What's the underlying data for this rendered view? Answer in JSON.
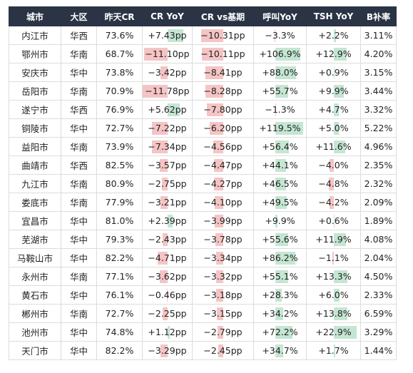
{
  "columns": [
    "城市",
    "大区",
    "昨天CR",
    "CR YoY",
    "CR vs基期",
    "呼叫YoY",
    "TSH YoY",
    "B补率"
  ],
  "colors": {
    "header_bg": "#2b3445",
    "neg_bar": "#f5c4c4",
    "pos_bar": "#c4e6d3"
  },
  "rows": [
    {
      "city": "内江市",
      "region": "华西",
      "cr": "73.6%",
      "cr_yoy": "+7.43pp",
      "cr_base": "−10.31pp",
      "call_yoy": "−3.3%",
      "tsh_yoy": "+2.2%",
      "b_rate": "3.11%",
      "v": [
        7.43,
        -10.31,
        -3.3,
        2.2
      ]
    },
    {
      "city": "鄂州市",
      "region": "华南",
      "cr": "68.7%",
      "cr_yoy": "−11.10pp",
      "cr_base": "−10.11pp",
      "call_yoy": "+106.9%",
      "tsh_yoy": "+12.9%",
      "b_rate": "4.20%",
      "v": [
        -11.1,
        -10.11,
        106.9,
        12.9
      ]
    },
    {
      "city": "安庆市",
      "region": "华中",
      "cr": "73.8%",
      "cr_yoy": "−3.42pp",
      "cr_base": "−8.41pp",
      "call_yoy": "+88.0%",
      "tsh_yoy": "+0.9%",
      "b_rate": "3.15%",
      "v": [
        -3.42,
        -8.41,
        88.0,
        0.9
      ]
    },
    {
      "city": "岳阳市",
      "region": "华南",
      "cr": "70.9%",
      "cr_yoy": "−11.78pp",
      "cr_base": "−8.28pp",
      "call_yoy": "+55.7%",
      "tsh_yoy": "+9.9%",
      "b_rate": "3.44%",
      "v": [
        -11.78,
        -8.28,
        55.7,
        9.9
      ]
    },
    {
      "city": "遂宁市",
      "region": "华西",
      "cr": "76.9%",
      "cr_yoy": "+5.62pp",
      "cr_base": "−7.80pp",
      "call_yoy": "−1.3%",
      "tsh_yoy": "+4.7%",
      "b_rate": "3.32%",
      "v": [
        5.62,
        -7.8,
        -1.3,
        4.7
      ]
    },
    {
      "city": "铜陵市",
      "region": "华中",
      "cr": "72.7%",
      "cr_yoy": "−7.22pp",
      "cr_base": "−6.20pp",
      "call_yoy": "+119.5%",
      "tsh_yoy": "+5.0%",
      "b_rate": "5.22%",
      "v": [
        -7.22,
        -6.2,
        119.5,
        5.0
      ]
    },
    {
      "city": "益阳市",
      "region": "华南",
      "cr": "73.9%",
      "cr_yoy": "−7.34pp",
      "cr_base": "−4.56pp",
      "call_yoy": "+56.4%",
      "tsh_yoy": "+11.6%",
      "b_rate": "4.96%",
      "v": [
        -7.34,
        -4.56,
        56.4,
        11.6
      ]
    },
    {
      "city": "曲靖市",
      "region": "华西",
      "cr": "82.5%",
      "cr_yoy": "−3.57pp",
      "cr_base": "−4.47pp",
      "call_yoy": "+44.1%",
      "tsh_yoy": "−4.0%",
      "b_rate": "2.35%",
      "v": [
        -3.57,
        -4.47,
        44.1,
        -4.0
      ]
    },
    {
      "city": "九江市",
      "region": "华南",
      "cr": "80.9%",
      "cr_yoy": "−2.75pp",
      "cr_base": "−4.27pp",
      "call_yoy": "+46.5%",
      "tsh_yoy": "−4.8%",
      "b_rate": "2.32%",
      "v": [
        -2.75,
        -4.27,
        46.5,
        -4.8
      ]
    },
    {
      "city": "娄底市",
      "region": "华南",
      "cr": "77.9%",
      "cr_yoy": "−3.21pp",
      "cr_base": "−4.10pp",
      "call_yoy": "+49.5%",
      "tsh_yoy": "−4.2%",
      "b_rate": "2.09%",
      "v": [
        -3.21,
        -4.1,
        49.5,
        -4.2
      ]
    },
    {
      "city": "宜昌市",
      "region": "华中",
      "cr": "81.0%",
      "cr_yoy": "+2.39pp",
      "cr_base": "−3.99pp",
      "call_yoy": "+9.9%",
      "tsh_yoy": "+0.6%",
      "b_rate": "1.89%",
      "v": [
        2.39,
        -3.99,
        9.9,
        0.6
      ]
    },
    {
      "city": "芜湖市",
      "region": "华中",
      "cr": "79.3%",
      "cr_yoy": "−2.43pp",
      "cr_base": "−3.78pp",
      "call_yoy": "+55.6%",
      "tsh_yoy": "+11.9%",
      "b_rate": "4.08%",
      "v": [
        -2.43,
        -3.78,
        55.6,
        11.9
      ]
    },
    {
      "city": "马鞍山市",
      "region": "华中",
      "cr": "82.2%",
      "cr_yoy": "−4.71pp",
      "cr_base": "−3.34pp",
      "call_yoy": "+86.2%",
      "tsh_yoy": "−1.1%",
      "b_rate": "2.04%",
      "v": [
        -4.71,
        -3.34,
        86.2,
        -1.1
      ]
    },
    {
      "city": "永州市",
      "region": "华南",
      "cr": "77.1%",
      "cr_yoy": "−3.62pp",
      "cr_base": "−3.32pp",
      "call_yoy": "+55.1%",
      "tsh_yoy": "+13.3%",
      "b_rate": "4.50%",
      "v": [
        -3.62,
        -3.32,
        55.1,
        13.3
      ]
    },
    {
      "city": "黄石市",
      "region": "华中",
      "cr": "76.1%",
      "cr_yoy": "−0.46pp",
      "cr_base": "−3.18pp",
      "call_yoy": "+28.3%",
      "tsh_yoy": "+6.0%",
      "b_rate": "2.33%",
      "v": [
        -0.46,
        -3.18,
        28.3,
        6.0
      ]
    },
    {
      "city": "郴州市",
      "region": "华南",
      "cr": "72.7%",
      "cr_yoy": "−2.25pp",
      "cr_base": "−3.15pp",
      "call_yoy": "+34.2%",
      "tsh_yoy": "+13.8%",
      "b_rate": "6.59%",
      "v": [
        -2.25,
        -3.15,
        34.2,
        13.8
      ]
    },
    {
      "city": "池州市",
      "region": "华中",
      "cr": "74.8%",
      "cr_yoy": "+1.12pp",
      "cr_base": "−2.79pp",
      "call_yoy": "+72.2%",
      "tsh_yoy": "+22.9%",
      "b_rate": "3.29%",
      "v": [
        1.12,
        -2.79,
        72.2,
        22.9
      ]
    },
    {
      "city": "天门市",
      "region": "华中",
      "cr": "82.2%",
      "cr_yoy": "−3.29pp",
      "cr_base": "−2.45pp",
      "call_yoy": "+34.7%",
      "tsh_yoy": "+1.7%",
      "b_rate": "1.44%",
      "v": [
        -3.29,
        -2.45,
        34.7,
        1.7
      ]
    }
  ]
}
